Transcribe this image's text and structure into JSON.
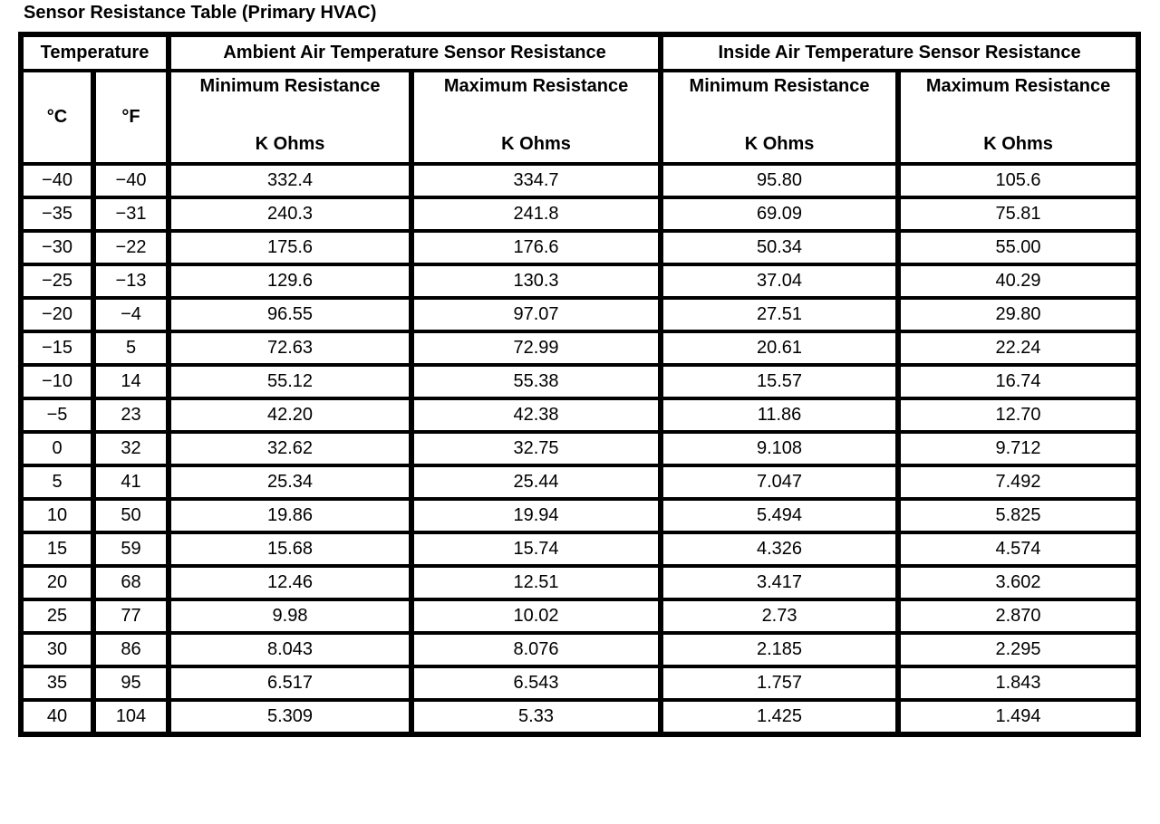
{
  "title": "Sensor Resistance Table (Primary HVAC)",
  "table": {
    "header": {
      "temperature": "Temperature",
      "ambient": "Ambient Air Temperature Sensor Resistance",
      "inside": "Inside Air Temperature Sensor Resistance",
      "celsius": "°C",
      "fahrenheit": "°F",
      "min_resistance": "Minimum Resistance",
      "max_resistance": "Maximum Resistance",
      "k_ohms": "K Ohms"
    },
    "columns": [
      "°C",
      "°F",
      "Ambient Minimum Resistance K Ohms",
      "Ambient Maximum Resistance K Ohms",
      "Inside Minimum Resistance K Ohms",
      "Inside Maximum Resistance K Ohms"
    ],
    "rows": [
      [
        "−40",
        "−40",
        "332.4",
        "334.7",
        "95.80",
        "105.6"
      ],
      [
        "−35",
        "−31",
        "240.3",
        "241.8",
        "69.09",
        "75.81"
      ],
      [
        "−30",
        "−22",
        "175.6",
        "176.6",
        "50.34",
        "55.00"
      ],
      [
        "−25",
        "−13",
        "129.6",
        "130.3",
        "37.04",
        "40.29"
      ],
      [
        "−20",
        "−4",
        "96.55",
        "97.07",
        "27.51",
        "29.80"
      ],
      [
        "−15",
        "5",
        "72.63",
        "72.99",
        "20.61",
        "22.24"
      ],
      [
        "−10",
        "14",
        "55.12",
        "55.38",
        "15.57",
        "16.74"
      ],
      [
        "−5",
        "23",
        "42.20",
        "42.38",
        "11.86",
        "12.70"
      ],
      [
        "0",
        "32",
        "32.62",
        "32.75",
        "9.108",
        "9.712"
      ],
      [
        "5",
        "41",
        "25.34",
        "25.44",
        "7.047",
        "7.492"
      ],
      [
        "10",
        "50",
        "19.86",
        "19.94",
        "5.494",
        "5.825"
      ],
      [
        "15",
        "59",
        "15.68",
        "15.74",
        "4.326",
        "4.574"
      ],
      [
        "20",
        "68",
        "12.46",
        "12.51",
        "3.417",
        "3.602"
      ],
      [
        "25",
        "77",
        "9.98",
        "10.02",
        "2.73",
        "2.870"
      ],
      [
        "30",
        "86",
        "8.043",
        "8.076",
        "2.185",
        "2.295"
      ],
      [
        "35",
        "95",
        "6.517",
        "6.543",
        "1.757",
        "1.843"
      ],
      [
        "40",
        "104",
        "5.309",
        "5.33",
        "1.425",
        "1.494"
      ]
    ],
    "colors": {
      "border": "#000000",
      "text": "#000000",
      "background": "#ffffff"
    }
  }
}
